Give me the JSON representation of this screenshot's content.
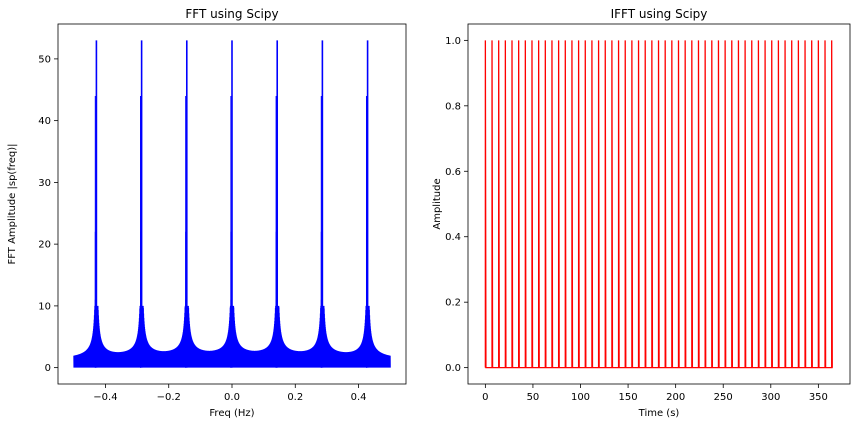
{
  "chart_data": [
    {
      "type": "line",
      "title": "FFT using Scipy",
      "xlabel": "Freq (Hz)",
      "ylabel": "FFT Amplitude |sp(freq)|",
      "xlim": [
        -0.55,
        0.55
      ],
      "ylim": [
        -2.65,
        55.65
      ],
      "xticks": [
        -0.4,
        -0.2,
        0.0,
        0.2,
        0.4
      ],
      "xtick_labels": [
        "−0.4",
        "−0.2",
        "0.0",
        "0.2",
        "0.4"
      ],
      "yticks": [
        0,
        10,
        20,
        30,
        40,
        50
      ],
      "ytick_labels": [
        "0",
        "10",
        "20",
        "30",
        "40",
        "50"
      ],
      "color": "#0000ff",
      "grid": false,
      "series": [
        {
          "peaks_x": [
            -0.4286,
            -0.2857,
            -0.1429,
            0.0,
            0.1429,
            0.2857,
            0.4286
          ],
          "peak_height": 53,
          "secondary_heights": [
            44,
            22,
            11
          ],
          "floor_level": 0.7,
          "x_range": [
            -0.5,
            0.5
          ]
        }
      ]
    },
    {
      "type": "line",
      "title": "IFFT using Scipy",
      "xlabel": "Time (s)",
      "ylabel": "Amplitude",
      "xlim": [
        -18.25,
        383.25
      ],
      "ylim": [
        -0.05,
        1.05
      ],
      "xticks": [
        0,
        50,
        100,
        150,
        200,
        250,
        300,
        350
      ],
      "xtick_labels": [
        "0",
        "50",
        "100",
        "150",
        "200",
        "250",
        "300",
        "350"
      ],
      "yticks": [
        0.0,
        0.2,
        0.4,
        0.6,
        0.8,
        1.0
      ],
      "ytick_labels": [
        "0.0",
        "0.2",
        "0.4",
        "0.6",
        "0.8",
        "1.0"
      ],
      "color": "#ff0000",
      "grid": false,
      "series": [
        {
          "pulse_period": 7,
          "pulse_start": 0,
          "pulse_end": 364,
          "pulse_value": 1.0,
          "base_value": 0.0,
          "x_range": [
            0,
            365
          ]
        }
      ]
    }
  ]
}
